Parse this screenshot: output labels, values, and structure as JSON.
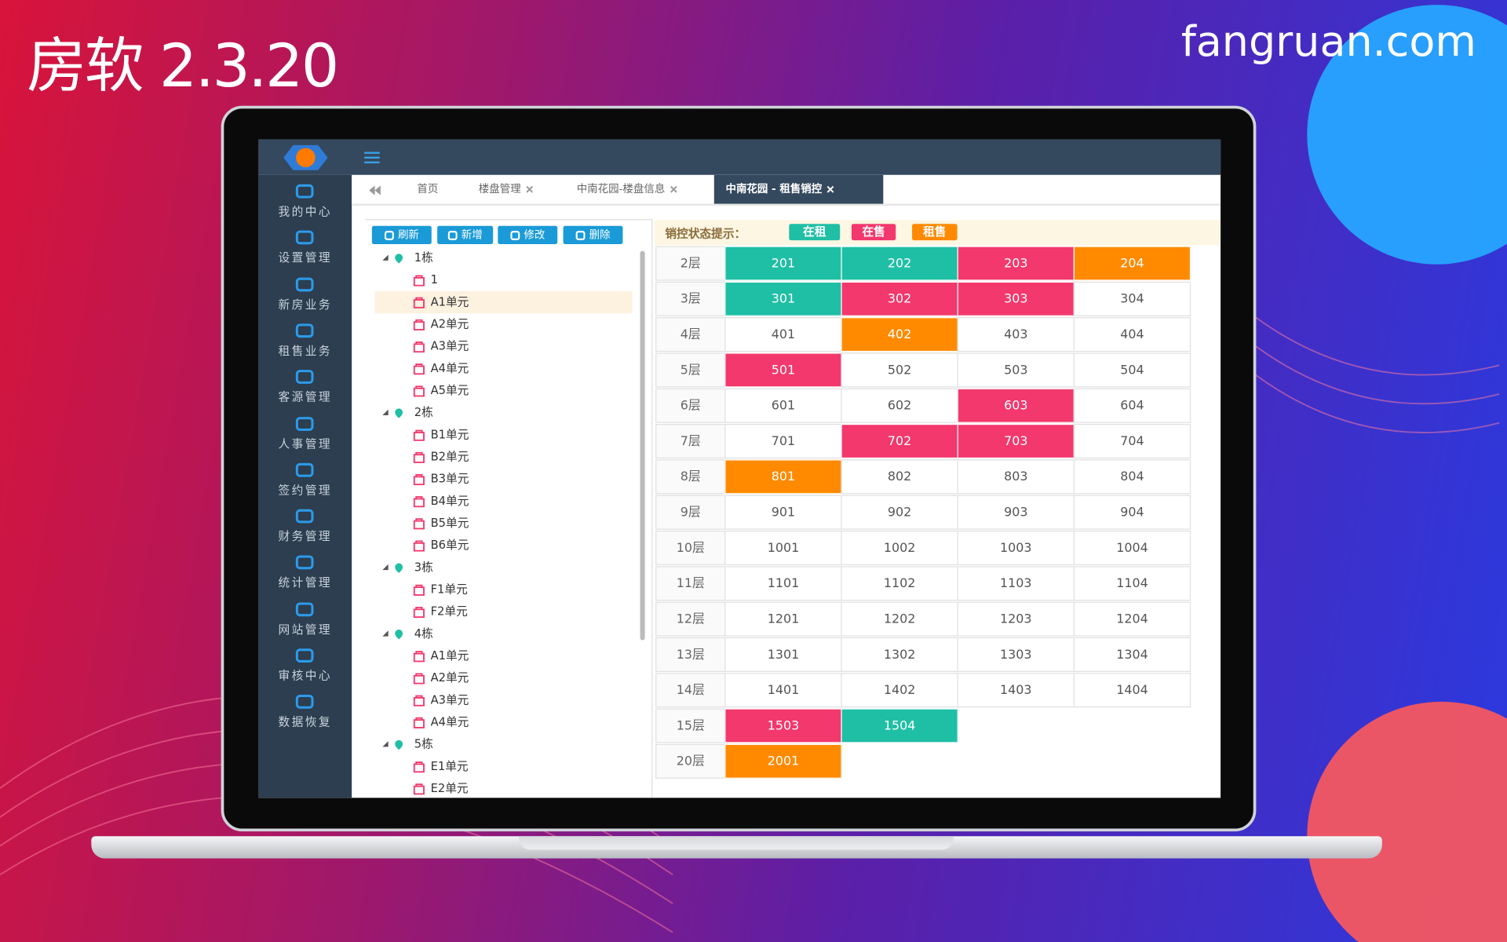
{
  "header": {
    "title": "房软 2.3.20",
    "site": "fangruan.com"
  },
  "sidebar": {
    "items": [
      "我的中心",
      "设置管理",
      "新房业务",
      "租售业务",
      "客源管理",
      "人事管理",
      "签约管理",
      "财务管理",
      "统计管理",
      "网站管理",
      "审核中心",
      "数据恢复"
    ]
  },
  "tabs": {
    "items": [
      "首页",
      "楼盘管理",
      "中南花园-楼盘信息",
      "中南花园 - 租售销控"
    ],
    "active": 3
  },
  "toolbar": {
    "buttons": [
      "刷新",
      "新增",
      "修改",
      "删除"
    ]
  },
  "tree": {
    "selected_building": 0,
    "selected_unit": 1,
    "nodes": [
      {
        "label": "1栋",
        "children": [
          "1",
          "A1单元",
          "A2单元",
          "A3单元",
          "A4单元",
          "A5单元"
        ]
      },
      {
        "label": "2栋",
        "children": [
          "B1单元",
          "B2单元",
          "B3单元",
          "B4单元",
          "B5单元",
          "B6单元"
        ]
      },
      {
        "label": "3栋",
        "children": [
          "F1单元",
          "F2单元"
        ]
      },
      {
        "label": "4栋",
        "children": [
          "A1单元",
          "A2单元",
          "A3单元",
          "A4单元"
        ]
      },
      {
        "label": "5栋",
        "children": [
          "E1单元",
          "E2单元"
        ]
      }
    ]
  },
  "legend": {
    "label": "销控状态提示：",
    "statuses": [
      {
        "label": "在租",
        "color": "#1fbfa5"
      },
      {
        "label": "在售",
        "color": "#f2386c"
      },
      {
        "label": "租售",
        "color": "#ff8a00"
      }
    ]
  },
  "grid": {
    "floors": [
      {
        "label": "2层",
        "rooms": [
          {
            "no": "201",
            "status": 0
          },
          {
            "no": "202",
            "status": 0
          },
          {
            "no": "203",
            "status": 1
          },
          {
            "no": "204",
            "status": 2
          }
        ]
      },
      {
        "label": "3层",
        "rooms": [
          {
            "no": "301",
            "status": 0
          },
          {
            "no": "302",
            "status": 1
          },
          {
            "no": "303",
            "status": 1
          },
          {
            "no": "304",
            "status": null
          }
        ]
      },
      {
        "label": "4层",
        "rooms": [
          {
            "no": "401",
            "status": null
          },
          {
            "no": "402",
            "status": 2
          },
          {
            "no": "403",
            "status": null
          },
          {
            "no": "404",
            "status": null
          }
        ]
      },
      {
        "label": "5层",
        "rooms": [
          {
            "no": "501",
            "status": 1
          },
          {
            "no": "502",
            "status": null
          },
          {
            "no": "503",
            "status": null
          },
          {
            "no": "504",
            "status": null
          }
        ]
      },
      {
        "label": "6层",
        "rooms": [
          {
            "no": "601",
            "status": null
          },
          {
            "no": "602",
            "status": null
          },
          {
            "no": "603",
            "status": 1
          },
          {
            "no": "604",
            "status": null
          }
        ]
      },
      {
        "label": "7层",
        "rooms": [
          {
            "no": "701",
            "status": null
          },
          {
            "no": "702",
            "status": 1
          },
          {
            "no": "703",
            "status": 1
          },
          {
            "no": "704",
            "status": null
          }
        ]
      },
      {
        "label": "8层",
        "rooms": [
          {
            "no": "801",
            "status": 2
          },
          {
            "no": "802",
            "status": null
          },
          {
            "no": "803",
            "status": null
          },
          {
            "no": "804",
            "status": null
          }
        ]
      },
      {
        "label": "9层",
        "rooms": [
          {
            "no": "901",
            "status": null
          },
          {
            "no": "902",
            "status": null
          },
          {
            "no": "903",
            "status": null
          },
          {
            "no": "904",
            "status": null
          }
        ]
      },
      {
        "label": "10层",
        "rooms": [
          {
            "no": "1001",
            "status": null
          },
          {
            "no": "1002",
            "status": null
          },
          {
            "no": "1003",
            "status": null
          },
          {
            "no": "1004",
            "status": null
          }
        ]
      },
      {
        "label": "11层",
        "rooms": [
          {
            "no": "1101",
            "status": null
          },
          {
            "no": "1102",
            "status": null
          },
          {
            "no": "1103",
            "status": null
          },
          {
            "no": "1104",
            "status": null
          }
        ]
      },
      {
        "label": "12层",
        "rooms": [
          {
            "no": "1201",
            "status": null
          },
          {
            "no": "1202",
            "status": null
          },
          {
            "no": "1203",
            "status": null
          },
          {
            "no": "1204",
            "status": null
          }
        ]
      },
      {
        "label": "13层",
        "rooms": [
          {
            "no": "1301",
            "status": null
          },
          {
            "no": "1302",
            "status": null
          },
          {
            "no": "1303",
            "status": null
          },
          {
            "no": "1304",
            "status": null
          }
        ]
      },
      {
        "label": "14层",
        "rooms": [
          {
            "no": "1401",
            "status": null
          },
          {
            "no": "1402",
            "status": null
          },
          {
            "no": "1403",
            "status": null
          },
          {
            "no": "1404",
            "status": null
          }
        ]
      },
      {
        "label": "15层",
        "rooms": [
          {
            "no": "1503",
            "status": 1
          },
          {
            "no": "1504",
            "status": 0
          }
        ]
      },
      {
        "label": "20层",
        "rooms": [
          {
            "no": "2001",
            "status": 2
          }
        ]
      }
    ]
  }
}
